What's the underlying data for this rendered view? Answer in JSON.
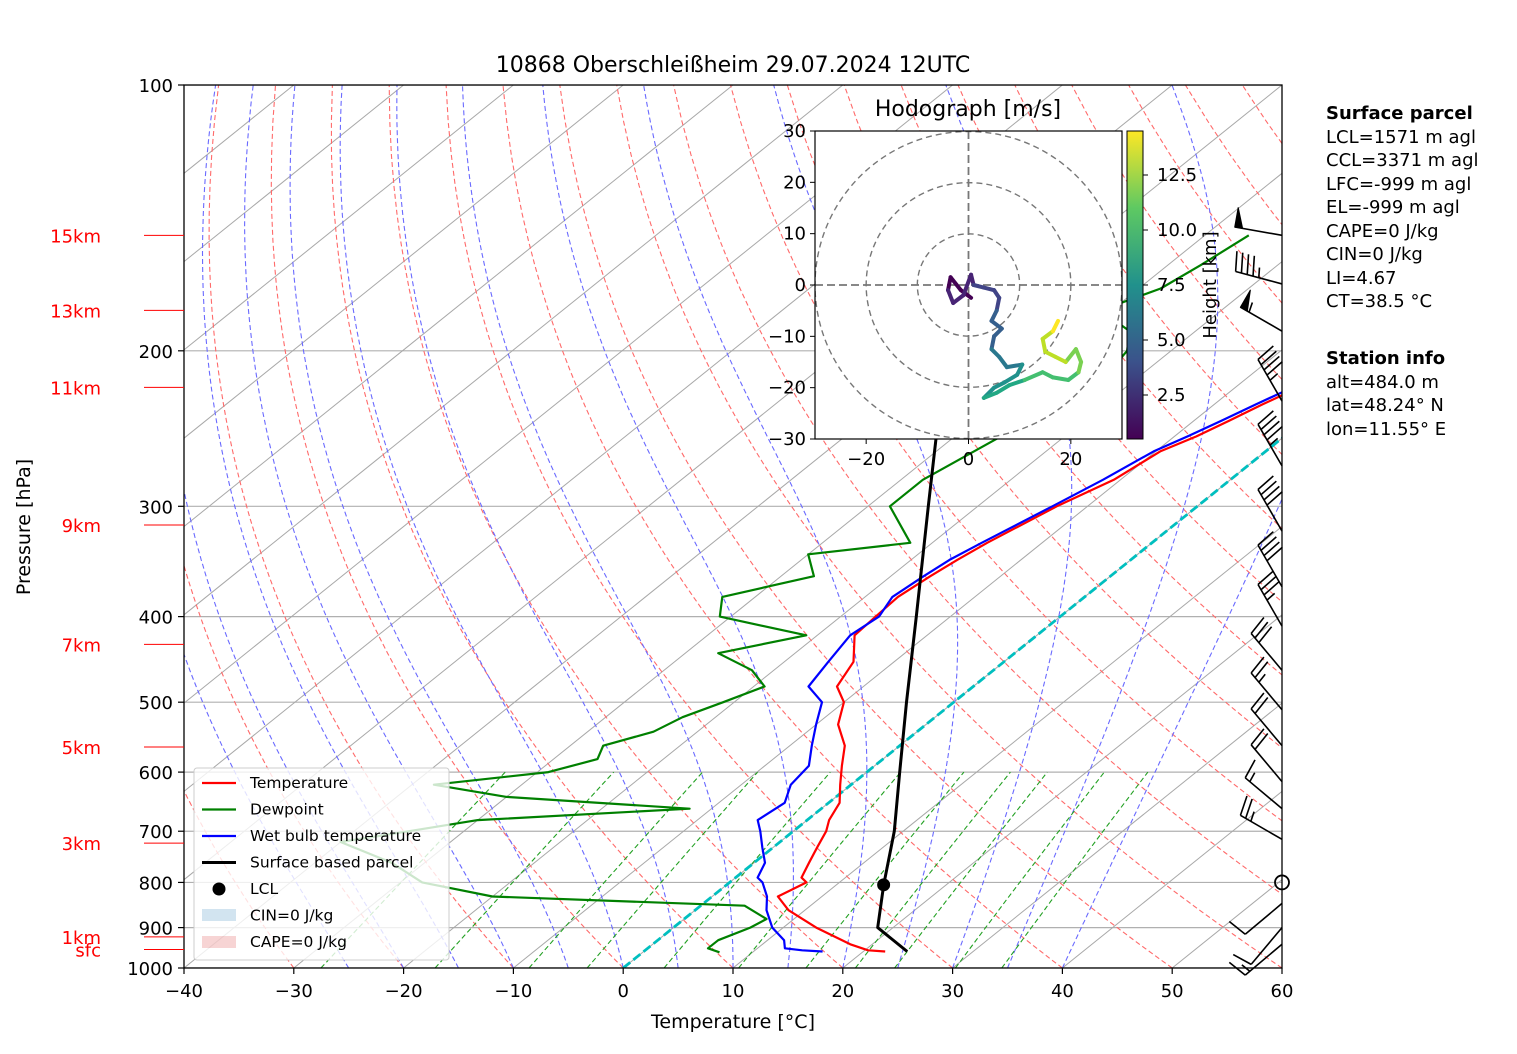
{
  "chart_data": {
    "type": "line",
    "title": "10868 Oberschleißheim 29.07.2024 12UTC",
    "xlabel": "Temperature [°C]",
    "ylabel": "Pressure [hPa]",
    "xlim": [
      -40,
      60
    ],
    "ylim": [
      1000,
      100
    ],
    "y_log_scale": true,
    "grid": true,
    "x_ticks": [
      -40,
      -30,
      -20,
      -10,
      0,
      10,
      20,
      30,
      40,
      50,
      60
    ],
    "x_tick_labels": [
      "−40",
      "−30",
      "−20",
      "−10",
      "0",
      "10",
      "20",
      "30",
      "40",
      "50",
      "60"
    ],
    "p_ticks": [
      100,
      200,
      300,
      400,
      500,
      600,
      700,
      800,
      900,
      1000
    ],
    "p_tick_labels": [
      "100",
      "200",
      "300",
      "400",
      "500",
      "600",
      "700",
      "800",
      "900",
      "1000"
    ],
    "height_labels": [
      {
        "label": "15km",
        "p": 148
      },
      {
        "label": "13km",
        "p": 180
      },
      {
        "label": "11km",
        "p": 220
      },
      {
        "label": "9km",
        "p": 315
      },
      {
        "label": "7km",
        "p": 430
      },
      {
        "label": "5km",
        "p": 562
      },
      {
        "label": "3km",
        "p": 722
      },
      {
        "label": "1km",
        "p": 922
      },
      {
        "label": "sfc",
        "p": 953
      }
    ],
    "series": [
      {
        "name": "Temperature",
        "color": "#ff0000",
        "points": [
          [
            2.3,
            146
          ],
          [
            1.8,
            150
          ],
          [
            2.0,
            160
          ],
          [
            0.8,
            170
          ],
          [
            1.5,
            180
          ],
          [
            0.7,
            190
          ],
          [
            -2.0,
            200
          ],
          [
            -3.0,
            210
          ],
          [
            -4.2,
            220
          ],
          [
            -5.6,
            230
          ],
          [
            -6.8,
            240
          ],
          [
            -8.0,
            250
          ],
          [
            -9.6,
            260
          ],
          [
            -10.6,
            280
          ],
          [
            -12.8,
            300
          ],
          [
            -15.0,
            330
          ],
          [
            -15.8,
            345
          ],
          [
            -16.4,
            360
          ],
          [
            -17.0,
            380
          ],
          [
            -16.8,
            400
          ],
          [
            -16.6,
            420
          ],
          [
            -13.7,
            450
          ],
          [
            -12.4,
            480
          ],
          [
            -10.0,
            500
          ],
          [
            -8.0,
            530
          ],
          [
            -5.0,
            560
          ],
          [
            -3.0,
            590
          ],
          [
            -1.0,
            620
          ],
          [
            1.0,
            650
          ],
          [
            2.0,
            680
          ],
          [
            3.0,
            700
          ],
          [
            4.0,
            730
          ],
          [
            5.0,
            760
          ],
          [
            6.0,
            790
          ],
          [
            7.0,
            800
          ],
          [
            6.0,
            830
          ],
          [
            8.5,
            860
          ],
          [
            13.0,
            900
          ],
          [
            18.0,
            940
          ],
          [
            20.3,
            955
          ],
          [
            22.0,
            958
          ]
        ]
      },
      {
        "name": "Dewpoint",
        "color": "#008000",
        "points": [
          [
            -26,
            148
          ],
          [
            -27,
            160
          ],
          [
            -28,
            170
          ],
          [
            -31,
            180
          ],
          [
            -26,
            190
          ],
          [
            -24,
            200
          ],
          [
            -23,
            215
          ],
          [
            -25,
            240
          ],
          [
            -28,
            280
          ],
          [
            -28,
            300
          ],
          [
            -22,
            330
          ],
          [
            -30,
            340
          ],
          [
            -27,
            360
          ],
          [
            -33,
            380
          ],
          [
            -31,
            400
          ],
          [
            -21,
            420
          ],
          [
            -27,
            440
          ],
          [
            -22,
            460
          ],
          [
            -19,
            480
          ],
          [
            -21,
            500
          ],
          [
            -23,
            520
          ],
          [
            -24,
            540
          ],
          [
            -27,
            560
          ],
          [
            -26,
            580
          ],
          [
            -29,
            600
          ],
          [
            -38,
            620
          ],
          [
            -30,
            640
          ],
          [
            -12,
            660
          ],
          [
            -30,
            680
          ],
          [
            -35,
            700
          ],
          [
            -40,
            720
          ],
          [
            -33,
            760
          ],
          [
            -28,
            800
          ],
          [
            -20,
            830
          ],
          [
            4,
            850
          ],
          [
            7.5,
            880
          ],
          [
            7.0,
            900
          ],
          [
            5.5,
            930
          ],
          [
            5.5,
            950
          ],
          [
            7.0,
            960
          ]
        ]
      },
      {
        "name": "Wet bulb temperature",
        "color": "#0000ff",
        "points": [
          [
            2.0,
            146
          ],
          [
            1.0,
            150
          ],
          [
            1.5,
            160
          ],
          [
            0.5,
            170
          ],
          [
            1.2,
            180
          ],
          [
            0.4,
            190
          ],
          [
            -2.5,
            200
          ],
          [
            -3.5,
            210
          ],
          [
            -4.8,
            220
          ],
          [
            -6.2,
            230
          ],
          [
            -7.5,
            240
          ],
          [
            -8.8,
            250
          ],
          [
            -10.2,
            260
          ],
          [
            -11.6,
            280
          ],
          [
            -13.2,
            300
          ],
          [
            -15.5,
            330
          ],
          [
            -16.5,
            345
          ],
          [
            -17.0,
            360
          ],
          [
            -17.5,
            380
          ],
          [
            -16.5,
            400
          ],
          [
            -17.0,
            420
          ],
          [
            -16.0,
            450
          ],
          [
            -15.0,
            480
          ],
          [
            -12.0,
            500
          ],
          [
            -10.0,
            530
          ],
          [
            -8.0,
            560
          ],
          [
            -6.0,
            590
          ],
          [
            -5.5,
            620
          ],
          [
            -4.0,
            650
          ],
          [
            -4.5,
            680
          ],
          [
            -3.0,
            700
          ],
          [
            -1.0,
            730
          ],
          [
            1.0,
            760
          ],
          [
            2.0,
            790
          ],
          [
            3.0,
            800
          ],
          [
            5.0,
            830
          ],
          [
            6.5,
            860
          ],
          [
            9.0,
            900
          ],
          [
            11.5,
            930
          ],
          [
            12.5,
            950
          ],
          [
            14.3,
            955
          ],
          [
            16.3,
            958
          ]
        ]
      },
      {
        "name": "Surface based parcel",
        "color": "#000000",
        "points": [
          [
            24.0,
            958
          ],
          [
            18.6,
            900
          ],
          [
            14.3,
            805
          ],
          [
            9.2,
            700
          ],
          [
            3.0,
            600
          ],
          [
            -4.3,
            500
          ],
          [
            -13.1,
            400
          ],
          [
            -24.5,
            300
          ],
          [
            -40.5,
            200
          ],
          [
            -53.4,
            150
          ]
        ]
      }
    ],
    "lcl": {
      "label": "LCL",
      "p": 805,
      "t": 14.3
    },
    "legend": {
      "placement": "lower-left",
      "entries": [
        "Temperature",
        "Dewpoint",
        "Wet bulb temperature",
        "Surface based parcel",
        "LCL",
        "CIN=0 J/kg",
        "CAPE=0 J/kg"
      ]
    },
    "wind_barbs": [
      {
        "p": 148,
        "speed_kt": 50,
        "dir": 280
      },
      {
        "p": 168,
        "speed_kt": 45,
        "dir": 285
      },
      {
        "p": 190,
        "speed_kt": 55,
        "dir": 300
      },
      {
        "p": 228,
        "speed_kt": 45,
        "dir": 330
      },
      {
        "p": 270,
        "speed_kt": 45,
        "dir": 330
      },
      {
        "p": 320,
        "speed_kt": 40,
        "dir": 330
      },
      {
        "p": 370,
        "speed_kt": 40,
        "dir": 330
      },
      {
        "p": 410,
        "speed_kt": 35,
        "dir": 330
      },
      {
        "p": 460,
        "speed_kt": 30,
        "dir": 320
      },
      {
        "p": 510,
        "speed_kt": 25,
        "dir": 320
      },
      {
        "p": 560,
        "speed_kt": 20,
        "dir": 320
      },
      {
        "p": 615,
        "speed_kt": 20,
        "dir": 320
      },
      {
        "p": 660,
        "speed_kt": 15,
        "dir": 310
      },
      {
        "p": 715,
        "speed_kt": 25,
        "dir": 300
      },
      {
        "p": 800,
        "speed_kt": 0,
        "dir": 0
      },
      {
        "p": 845,
        "speed_kt": 10,
        "dir": 230
      },
      {
        "p": 900,
        "speed_kt": 10,
        "dir": 220
      },
      {
        "p": 940,
        "speed_kt": 15,
        "dir": 230
      }
    ],
    "hodograph": {
      "title": "Hodograph [m/s]",
      "xlim": [
        -30,
        30
      ],
      "ylim": [
        -30,
        30
      ],
      "ticks": [
        -20,
        0,
        20
      ],
      "tick_labels": [
        "−20",
        "0",
        "20"
      ],
      "y_ticks": [
        30,
        20,
        10,
        0,
        -10,
        -20,
        -30
      ],
      "y_tick_labels": [
        "30",
        "20",
        "10",
        "0",
        "−10",
        "−20",
        "−30"
      ],
      "rings": [
        10,
        20,
        30
      ],
      "colorbar_label": "Height [km]",
      "colorbar_ticks": [
        2.5,
        5.0,
        7.5,
        10.0,
        12.5
      ],
      "colorbar_tick_labels": [
        "2.5",
        "5.0",
        "7.5",
        "10.0",
        "12.5"
      ],
      "colorbar_range": [
        0.5,
        14.5
      ],
      "track": [
        [
          0.5,
          -2.5,
          0.6
        ],
        [
          -1.5,
          -1.0,
          0.9
        ],
        [
          -3.5,
          1.5,
          1.2
        ],
        [
          -4.0,
          -1.0,
          1.5
        ],
        [
          -3.0,
          -3.5,
          1.8
        ],
        [
          -1.0,
          -2.0,
          2.1
        ],
        [
          0.5,
          2.0,
          2.4
        ],
        [
          1.0,
          0.0,
          2.7
        ],
        [
          3.0,
          -0.5,
          3.0
        ],
        [
          5.0,
          -1.0,
          3.3
        ],
        [
          6.0,
          -2.5,
          3.6
        ],
        [
          5.5,
          -5.0,
          4.0
        ],
        [
          4.5,
          -7.0,
          4.4
        ],
        [
          6.5,
          -8.5,
          4.8
        ],
        [
          5.0,
          -10.0,
          5.2
        ],
        [
          4.5,
          -12.5,
          5.6
        ],
        [
          6.0,
          -14.0,
          6.0
        ],
        [
          7.5,
          -16.0,
          6.4
        ],
        [
          10.5,
          -15.5,
          6.8
        ],
        [
          9.5,
          -17.5,
          7.2
        ],
        [
          7.0,
          -19.0,
          7.6
        ],
        [
          5.0,
          -20.0,
          8.0
        ],
        [
          3.0,
          -22.0,
          8.4
        ],
        [
          5.5,
          -21.0,
          8.8
        ],
        [
          8.0,
          -19.5,
          9.2
        ],
        [
          11.0,
          -18.5,
          9.6
        ],
        [
          14.5,
          -17.0,
          10.0
        ],
        [
          16.5,
          -18.0,
          10.4
        ],
        [
          19.5,
          -18.5,
          10.8
        ],
        [
          21.5,
          -17.0,
          11.2
        ],
        [
          22.0,
          -15.0,
          11.6
        ],
        [
          21.0,
          -12.5,
          12.0
        ],
        [
          19.0,
          -15.0,
          12.4
        ],
        [
          17.0,
          -14.0,
          12.8
        ],
        [
          15.0,
          -13.0,
          13.2
        ],
        [
          14.5,
          -10.5,
          13.6
        ],
        [
          16.5,
          -9.0,
          14.0
        ],
        [
          17.5,
          -7.0,
          14.3
        ]
      ]
    }
  },
  "surface_parcel": {
    "title": "Surface parcel",
    "lines": [
      "LCL=1571 m agl",
      "CCL=3371 m agl",
      "LFC=-999 m agl",
      "EL=-999 m agl",
      "CAPE=0 J/kg",
      "CIN=0 J/kg",
      "LI=4.67",
      "CT=38.5 °C"
    ]
  },
  "station_info": {
    "title": "Station info",
    "lines": [
      "alt=484.0 m",
      "lat=48.24° N",
      "lon=11.55° E"
    ]
  }
}
